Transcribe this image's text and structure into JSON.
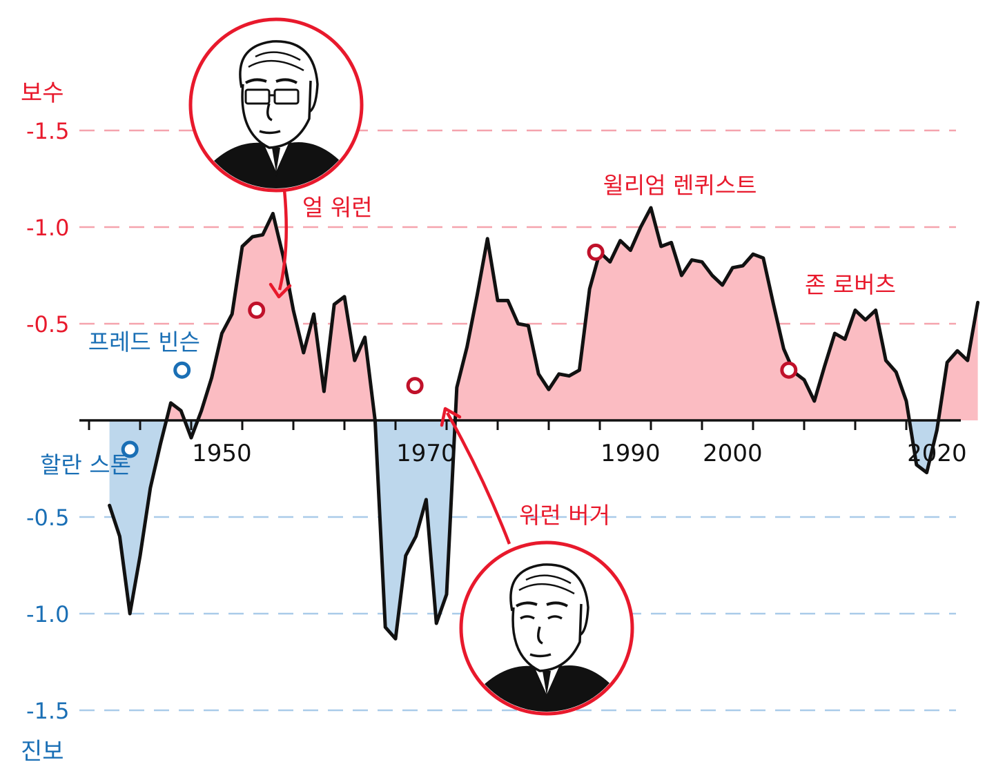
{
  "colors": {
    "conservative": "#e8192c",
    "liberal": "#1a6fb5",
    "fill_conservative": "#fbbcc2",
    "fill_liberal": "#bdd7ec",
    "line": "#111111",
    "grid_conservative": "#f5a3ad",
    "grid_liberal": "#a9cbe9"
  },
  "chart_data": {
    "type": "area",
    "title": "",
    "xlabel": "",
    "ylabel_top": "보수",
    "ylabel_bottom": "진보",
    "xlim": [
      1937,
      2021
    ],
    "ylim": [
      -1.6,
      1.6
    ],
    "x_ticks": [
      1950,
      1970,
      1990,
      2000,
      2020
    ],
    "y_ticks_conservative": [
      {
        "value": 1.5,
        "label": "-1.5"
      },
      {
        "value": 1.0,
        "label": "-1.0"
      },
      {
        "value": 0.5,
        "label": "-0.5"
      }
    ],
    "y_ticks_liberal": [
      {
        "value": -0.5,
        "label": "-0.5"
      },
      {
        "value": -1.0,
        "label": "-1.0"
      },
      {
        "value": -1.5,
        "label": "-1.5"
      }
    ],
    "grid": true,
    "series": [
      {
        "values": [
          [
            1939,
            -0.44
          ],
          [
            1940,
            -0.6
          ],
          [
            1941,
            -1.0
          ],
          [
            1942,
            -0.7
          ],
          [
            1943,
            -0.35
          ],
          [
            1944,
            -0.12
          ],
          [
            1945,
            0.09
          ],
          [
            1946,
            0.05
          ],
          [
            1947,
            -0.09
          ],
          [
            1948,
            0.05
          ],
          [
            1949,
            0.22
          ],
          [
            1950,
            0.45
          ],
          [
            1951,
            0.55
          ],
          [
            1952,
            0.9
          ],
          [
            1953,
            0.95
          ],
          [
            1954,
            0.96
          ],
          [
            1955,
            1.07
          ],
          [
            1956,
            0.85
          ],
          [
            1957,
            0.57
          ],
          [
            1958,
            0.35
          ],
          [
            1959,
            0.55
          ],
          [
            1960,
            0.15
          ],
          [
            1961,
            0.6
          ],
          [
            1962,
            0.64
          ],
          [
            1963,
            0.31
          ],
          [
            1964,
            0.43
          ],
          [
            1965,
            0.0
          ],
          [
            1966,
            -1.07
          ],
          [
            1967,
            -1.13
          ],
          [
            1968,
            -0.7
          ],
          [
            1969,
            -0.6
          ],
          [
            1970,
            -0.41
          ],
          [
            1971,
            -1.05
          ],
          [
            1972,
            -0.9
          ],
          [
            1973,
            0.17
          ],
          [
            1974,
            0.38
          ],
          [
            1975,
            0.65
          ],
          [
            1976,
            0.94
          ],
          [
            1977,
            0.62
          ],
          [
            1978,
            0.62
          ],
          [
            1979,
            0.5
          ],
          [
            1980,
            0.49
          ],
          [
            1981,
            0.24
          ],
          [
            1982,
            0.16
          ],
          [
            1983,
            0.24
          ],
          [
            1984,
            0.23
          ],
          [
            1985,
            0.26
          ],
          [
            1986,
            0.68
          ],
          [
            1987,
            0.87
          ],
          [
            1988,
            0.82
          ],
          [
            1989,
            0.93
          ],
          [
            1990,
            0.88
          ],
          [
            1991,
            1.0
          ],
          [
            1992,
            1.1
          ],
          [
            1993,
            0.9
          ],
          [
            1994,
            0.92
          ],
          [
            1995,
            0.75
          ],
          [
            1996,
            0.83
          ],
          [
            1997,
            0.82
          ],
          [
            1998,
            0.75
          ],
          [
            1999,
            0.7
          ],
          [
            2000,
            0.79
          ],
          [
            2001,
            0.8
          ],
          [
            2002,
            0.86
          ],
          [
            2003,
            0.84
          ],
          [
            2004,
            0.6
          ],
          [
            2005,
            0.37
          ],
          [
            2006,
            0.25
          ],
          [
            2007,
            0.21
          ],
          [
            2008,
            0.1
          ],
          [
            2009,
            0.28
          ],
          [
            2010,
            0.45
          ],
          [
            2011,
            0.42
          ],
          [
            2012,
            0.57
          ],
          [
            2013,
            0.52
          ],
          [
            2014,
            0.57
          ],
          [
            2015,
            0.31
          ],
          [
            2016,
            0.25
          ],
          [
            2017,
            0.1
          ],
          [
            2018,
            -0.23
          ],
          [
            2019,
            -0.27
          ],
          [
            2020,
            -0.05
          ],
          [
            2021,
            0.3
          ],
          [
            2022,
            0.36
          ],
          [
            2023,
            0.31
          ],
          [
            2024,
            0.61
          ]
        ]
      }
    ],
    "markers": [
      {
        "label": "프레드 빈슨",
        "x": 1946.1,
        "y": 0.26,
        "side": "liberal",
        "label_pos": "left"
      },
      {
        "label": "할란 스톤",
        "x": 1941.0,
        "y": -0.15,
        "side": "liberal",
        "label_pos": "left"
      },
      {
        "label": "얼 워런",
        "x": 1953.4,
        "y": 0.57,
        "side": "conservative",
        "label_pos": "top",
        "portrait": true
      },
      {
        "label": "워런 버거",
        "x": 1968.9,
        "y": 0.18,
        "side": "conservative",
        "label_pos": "bottom",
        "portrait": true
      },
      {
        "label": "윌리엄 렌퀴스트",
        "x": 1986.6,
        "y": 0.87,
        "side": "conservative",
        "label_pos": "top"
      },
      {
        "label": "존 로버츠",
        "x": 2005.5,
        "y": 0.26,
        "side": "conservative",
        "label_pos": "top"
      }
    ]
  }
}
